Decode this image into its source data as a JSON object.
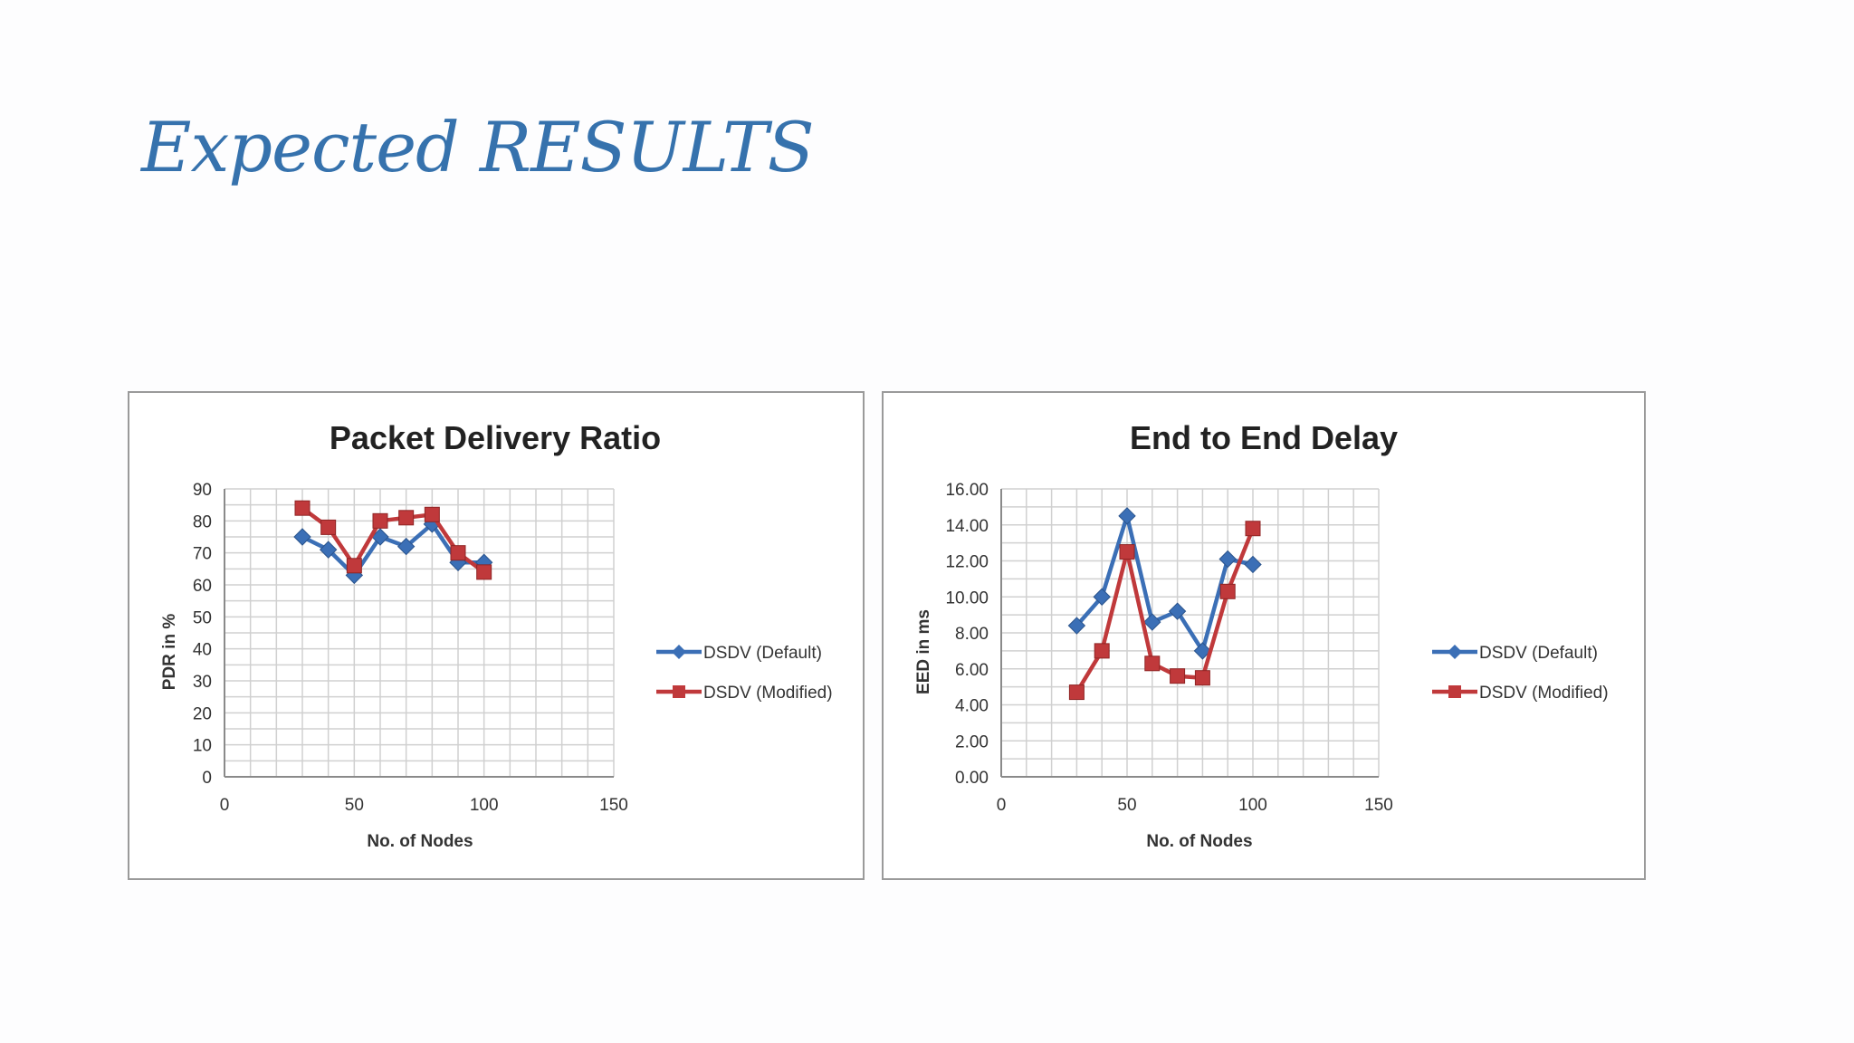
{
  "slide": {
    "title": "Expected RESULTS"
  },
  "chart_data": [
    {
      "type": "line",
      "title": "Packet Delivery Ratio",
      "xlabel": "No. of Nodes",
      "ylabel": "PDR in %",
      "xlim": [
        0,
        150
      ],
      "ylim": [
        0,
        90
      ],
      "x_ticks": [
        0,
        50,
        100,
        150
      ],
      "y_ticks": [
        0,
        10,
        20,
        30,
        40,
        50,
        60,
        70,
        80,
        90
      ],
      "y_tick_labels": [
        "0",
        "10",
        "20",
        "30",
        "40",
        "50",
        "60",
        "70",
        "80",
        "90"
      ],
      "x_grid_step": 10,
      "grid": true,
      "legend_position": "right",
      "series": [
        {
          "name": "DSDV (Default)",
          "color": "#3b6fb6",
          "marker": "diamond",
          "x": [
            30,
            40,
            50,
            60,
            70,
            80,
            90,
            100
          ],
          "values": [
            75,
            71,
            63,
            75,
            72,
            79,
            67,
            67
          ]
        },
        {
          "name": "DSDV (Modified)",
          "color": "#c0393b",
          "marker": "square",
          "x": [
            30,
            40,
            50,
            60,
            70,
            80,
            90,
            100
          ],
          "values": [
            84,
            78,
            66,
            80,
            81,
            82,
            70,
            64
          ]
        }
      ]
    },
    {
      "type": "line",
      "title": "End to End Delay",
      "xlabel": "No. of Nodes",
      "ylabel": "EED in ms",
      "xlim": [
        0,
        150
      ],
      "ylim": [
        0,
        16
      ],
      "x_ticks": [
        0,
        50,
        100,
        150
      ],
      "y_ticks": [
        0,
        2,
        4,
        6,
        8,
        10,
        12,
        14,
        16
      ],
      "y_tick_labels": [
        "0.00",
        "2.00",
        "4.00",
        "6.00",
        "8.00",
        "10.00",
        "12.00",
        "14.00",
        "16.00"
      ],
      "x_grid_step": 10,
      "grid": true,
      "legend_position": "right",
      "series": [
        {
          "name": "DSDV (Default)",
          "color": "#3b6fb6",
          "marker": "diamond",
          "x": [
            30,
            40,
            50,
            60,
            70,
            80,
            90,
            100
          ],
          "values": [
            8.4,
            10.0,
            14.5,
            8.6,
            9.2,
            7.0,
            12.1,
            11.8
          ]
        },
        {
          "name": "DSDV (Modified)",
          "color": "#c0393b",
          "marker": "square",
          "x": [
            30,
            40,
            50,
            60,
            70,
            80,
            90,
            100
          ],
          "values": [
            4.7,
            7.0,
            12.5,
            6.3,
            5.6,
            5.5,
            10.3,
            13.8
          ]
        }
      ]
    }
  ]
}
